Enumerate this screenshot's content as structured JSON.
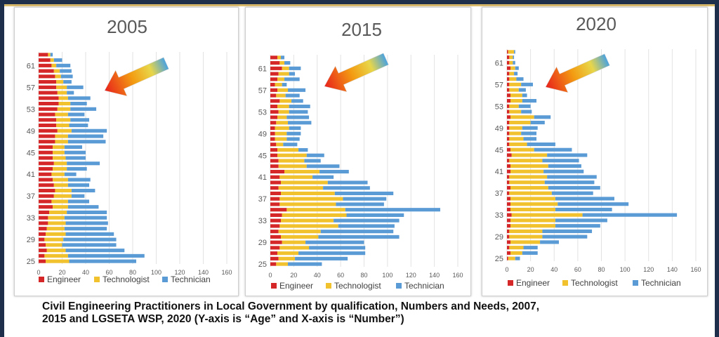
{
  "colors": {
    "engineer": "#d62728",
    "technologist": "#f2c12e",
    "technician": "#5b9bd5",
    "frame": "#1d2f4a",
    "gold": "#d9b96a"
  },
  "caption": {
    "line1": "Civil Engineering Practitioners in Local Government by qualification, Numbers and Needs, 2007,",
    "line2": "2015 and LGSETA WSP, 2020 (Y-axis is “Age” and X-axis is “Number”)"
  },
  "decoration": {
    "arrow_icon": "gradient-arrow-icon"
  },
  "chart_data": [
    {
      "type": "bar",
      "orientation": "horizontal",
      "stacked": true,
      "title": "2005",
      "categories": [
        25,
        26,
        27,
        28,
        29,
        30,
        31,
        32,
        33,
        34,
        35,
        36,
        37,
        38,
        39,
        40,
        41,
        42,
        43,
        44,
        45,
        46,
        47,
        48,
        49,
        50,
        51,
        52,
        53,
        54,
        55,
        56,
        57,
        58,
        59,
        60,
        61,
        62,
        63
      ],
      "y_tick_labels": [
        "25",
        "29",
        "33",
        "37",
        "41",
        "45",
        "49",
        "53",
        "57",
        "61"
      ],
      "x_ticks": [
        0,
        20,
        40,
        60,
        80,
        100,
        120,
        140,
        160
      ],
      "xlim": [
        0,
        160
      ],
      "grid": "vertical",
      "legend_position": "bottom",
      "series": [
        {
          "name": "Engineer",
          "values": [
            6,
            5,
            7,
            6,
            5,
            6,
            7,
            8,
            8,
            9,
            12,
            11,
            13,
            14,
            13,
            12,
            11,
            12,
            13,
            12,
            12,
            12,
            14,
            14,
            16,
            15,
            15,
            14,
            16,
            17,
            17,
            16,
            15,
            15,
            14,
            13,
            11,
            10,
            8
          ]
        },
        {
          "name": "Technologist",
          "values": [
            20,
            20,
            16,
            14,
            16,
            17,
            15,
            15,
            14,
            15,
            13,
            14,
            15,
            14,
            12,
            13,
            11,
            12,
            11,
            11,
            10,
            10,
            11,
            11,
            12,
            11,
            12,
            11,
            11,
            10,
            8,
            8,
            9,
            6,
            5,
            5,
            4,
            3,
            2
          ]
        },
        {
          "name": "Technician",
          "values": [
            57,
            65,
            50,
            46,
            45,
            41,
            36,
            36,
            36,
            34,
            26,
            18,
            11,
            20,
            18,
            19,
            10,
            17,
            28,
            17,
            18,
            15,
            32,
            30,
            30,
            16,
            16,
            14,
            22,
            14,
            19,
            6,
            14,
            7,
            10,
            10,
            12,
            7,
            2
          ]
        }
      ]
    },
    {
      "type": "bar",
      "orientation": "horizontal",
      "stacked": true,
      "title": "2015",
      "categories": [
        25,
        26,
        27,
        28,
        29,
        30,
        31,
        32,
        33,
        34,
        35,
        36,
        37,
        38,
        39,
        40,
        41,
        42,
        43,
        44,
        45,
        46,
        47,
        48,
        49,
        50,
        51,
        52,
        53,
        54,
        55,
        56,
        57,
        58,
        59,
        60,
        61,
        62,
        63
      ],
      "y_tick_labels": [
        "25",
        "29",
        "33",
        "37",
        "41",
        "45",
        "49",
        "53",
        "57",
        "61"
      ],
      "x_ticks": [
        0,
        20,
        40,
        60,
        80,
        100,
        120,
        140,
        160
      ],
      "xlim": [
        0,
        160
      ],
      "grid": "vertical",
      "legend_position": "bottom",
      "series": [
        {
          "name": "Engineer",
          "values": [
            5,
            7,
            6,
            8,
            10,
            9,
            7,
            8,
            9,
            10,
            14,
            8,
            8,
            9,
            7,
            9,
            8,
            12,
            7,
            7,
            6,
            6,
            5,
            4,
            4,
            4,
            5,
            6,
            7,
            6,
            8,
            5,
            6,
            4,
            6,
            7,
            10,
            8,
            6
          ]
        },
        {
          "name": "Technologist",
          "values": [
            10,
            14,
            18,
            25,
            20,
            32,
            36,
            50,
            45,
            55,
            50,
            48,
            54,
            46,
            38,
            40,
            28,
            30,
            24,
            22,
            25,
            18,
            6,
            10,
            10,
            12,
            10,
            8,
            9,
            10,
            10,
            8,
            9,
            6,
            6,
            9,
            6,
            4,
            3
          ]
        },
        {
          "name": "Technician",
          "values": [
            29,
            45,
            57,
            48,
            50,
            69,
            62,
            48,
            56,
            49,
            81,
            41,
            37,
            50,
            40,
            34,
            18,
            25,
            28,
            14,
            15,
            8,
            12,
            11,
            12,
            10,
            20,
            19,
            16,
            18,
            10,
            12,
            15,
            4,
            13,
            5,
            10,
            5,
            3
          ]
        }
      ]
    },
    {
      "type": "bar",
      "orientation": "horizontal",
      "stacked": true,
      "title": "2020",
      "categories": [
        25,
        26,
        27,
        28,
        29,
        30,
        31,
        32,
        33,
        34,
        35,
        36,
        37,
        38,
        39,
        40,
        41,
        42,
        43,
        44,
        45,
        46,
        47,
        48,
        49,
        50,
        51,
        52,
        53,
        54,
        55,
        56,
        57,
        58,
        59,
        60,
        61,
        62,
        63
      ],
      "y_tick_labels": [
        "25",
        "29",
        "33",
        "37",
        "41",
        "45",
        "49",
        "53",
        "57",
        "61"
      ],
      "x_ticks": [
        0,
        20,
        40,
        60,
        80,
        100,
        120,
        140,
        160
      ],
      "xlim": [
        0,
        160
      ],
      "grid": "vertical",
      "legend_position": "bottom",
      "series": [
        {
          "name": "Engineer",
          "values": [
            1,
            3,
            2,
            3,
            2,
            2,
            3,
            3,
            4,
            3,
            3,
            3,
            2,
            3,
            2,
            2,
            3,
            3,
            2,
            4,
            3,
            2,
            2,
            2,
            2,
            2,
            3,
            2,
            2,
            3,
            3,
            2,
            2,
            2,
            2,
            3,
            2,
            2,
            1
          ]
        },
        {
          "name": "Technologist",
          "values": [
            6,
            10,
            12,
            25,
            28,
            28,
            38,
            38,
            60,
            38,
            40,
            38,
            36,
            32,
            30,
            32,
            28,
            32,
            28,
            30,
            20,
            15,
            12,
            10,
            11,
            18,
            20,
            10,
            8,
            10,
            10,
            8,
            10,
            6,
            4,
            4,
            3,
            3,
            5
          ]
        },
        {
          "name": "Technician",
          "values": [
            4,
            13,
            12,
            16,
            38,
            42,
            38,
            44,
            80,
            48,
            60,
            50,
            35,
            44,
            42,
            42,
            34,
            28,
            31,
            34,
            32,
            24,
            11,
            13,
            13,
            12,
            14,
            9,
            10,
            12,
            4,
            6,
            10,
            6,
            3,
            3,
            2,
            1,
            1
          ]
        }
      ]
    }
  ]
}
